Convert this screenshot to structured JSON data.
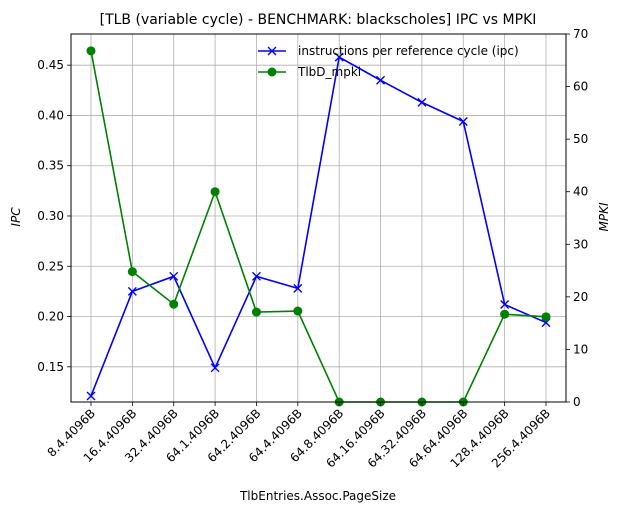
{
  "chart_data": {
    "type": "line",
    "title": "[TLB (variable cycle) - BENCHMARK: blackscholes]  IPC vs MPKI",
    "xlabel": "TlbEntries.Assoc.PageSize",
    "ylabel_left": "IPC",
    "ylabel_right": "MPKI",
    "categories": [
      "8.4.4096B",
      "16.4.4096B",
      "32.4.4096B",
      "64.1.4096B",
      "64.2.4096B",
      "64.4.4096B",
      "64.8.4096B",
      "64.16.4096B",
      "64.32.4096B",
      "64.64.4096B",
      "128.4.4096B",
      "256.4.4096B"
    ],
    "y_left": {
      "ylim": [
        0.115,
        0.481
      ],
      "ticks": [
        0.15,
        0.2,
        0.25,
        0.3,
        0.35,
        0.4,
        0.45
      ],
      "tick_labels": [
        "0.15",
        "0.20",
        "0.25",
        "0.30",
        "0.35",
        "0.40",
        "0.45"
      ]
    },
    "y_right": {
      "ylim": [
        0,
        70
      ],
      "ticks": [
        0,
        10,
        20,
        30,
        40,
        50,
        60,
        70
      ],
      "tick_labels": [
        "0",
        "10",
        "20",
        "30",
        "40",
        "50",
        "60",
        "70"
      ]
    },
    "grid": true,
    "legend_position": "top-right",
    "series": [
      {
        "name": "instructions per reference cycle (ipc)",
        "axis": "left",
        "color": "#0000ff",
        "marker": "x",
        "values": [
          0.121,
          0.225,
          0.24,
          0.149,
          0.24,
          0.228,
          0.458,
          0.435,
          0.413,
          0.394,
          0.212,
          0.194
        ]
      },
      {
        "name": "TlbD_mpki",
        "axis": "right",
        "color": "#008000",
        "marker": "o",
        "values": [
          66.8,
          24.8,
          18.6,
          40.0,
          17.1,
          17.3,
          0.0,
          0.0,
          0.0,
          0.0,
          16.7,
          16.2
        ]
      }
    ]
  }
}
